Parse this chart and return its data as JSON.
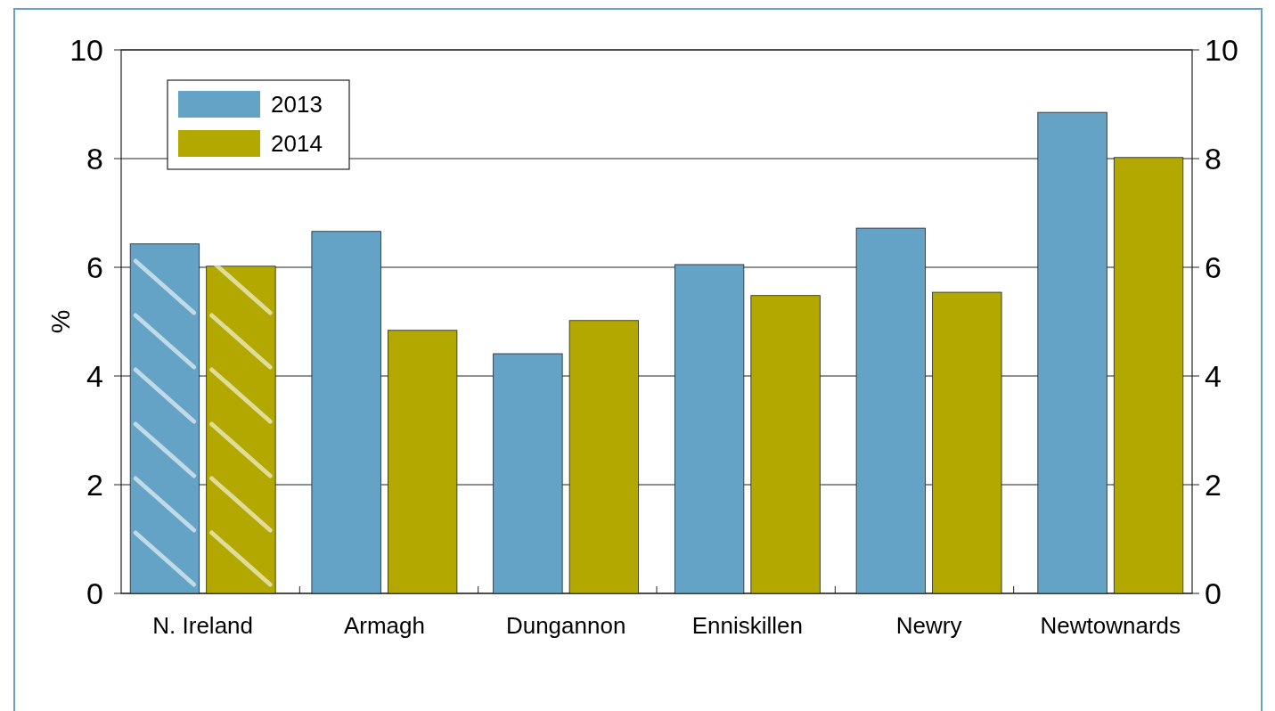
{
  "chart_data": {
    "type": "bar",
    "ylabel": "%",
    "categories": [
      "N. Ireland",
      "Armagh",
      "Dungannon",
      "Enniskillen",
      "Newry",
      "Newtownards"
    ],
    "series": [
      {
        "name": "2013",
        "color": "#65a3c6",
        "values": [
          6.43,
          6.66,
          4.41,
          6.05,
          6.72,
          8.85
        ]
      },
      {
        "name": "2014",
        "color": "#b2a800",
        "values": [
          6.02,
          4.84,
          5.02,
          5.48,
          5.54,
          8.02
        ]
      }
    ],
    "ylim": [
      0,
      10
    ],
    "yticks": [
      0,
      2,
      4,
      6,
      8,
      10
    ],
    "y2lim": [
      0,
      10
    ],
    "y2ticks": [
      0,
      2,
      4,
      6,
      8,
      10
    ],
    "grid": "y",
    "legend": "top left"
  }
}
